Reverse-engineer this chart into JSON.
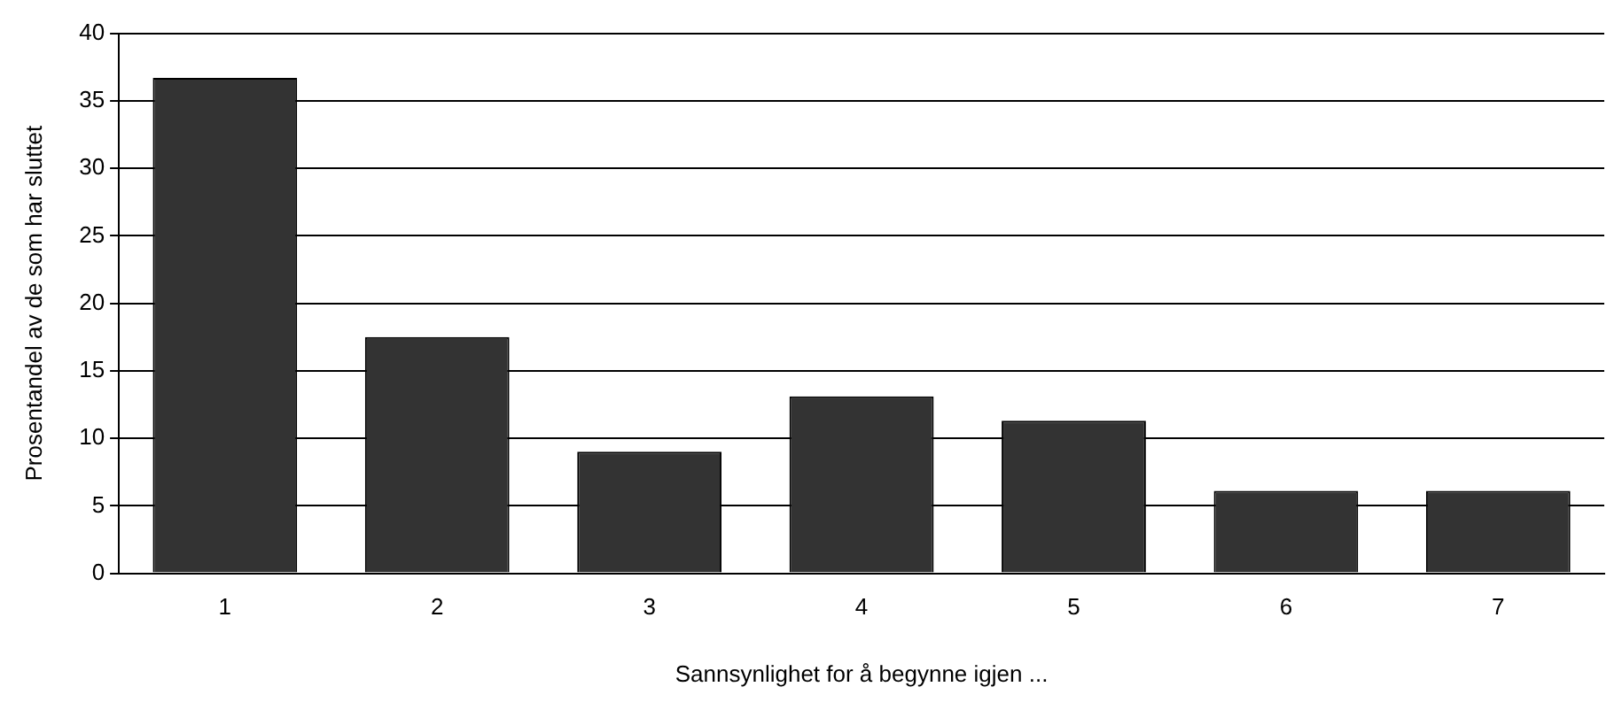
{
  "chart_data": {
    "type": "bar",
    "xlabel": "Sannsynlighet for å begynne igjen ...",
    "ylabel": "Prosentandel av de som har sluttet",
    "categories": [
      "1",
      "2",
      "3",
      "4",
      "5",
      "6",
      "7"
    ],
    "values": [
      36.7,
      17.5,
      9.0,
      13.1,
      11.3,
      6.1,
      6.1
    ],
    "color": "#333333",
    "ylim": [
      0,
      40
    ],
    "yticks": [
      0,
      5,
      10,
      15,
      20,
      25,
      30,
      35,
      40
    ],
    "grid": "y",
    "legend": false
  }
}
